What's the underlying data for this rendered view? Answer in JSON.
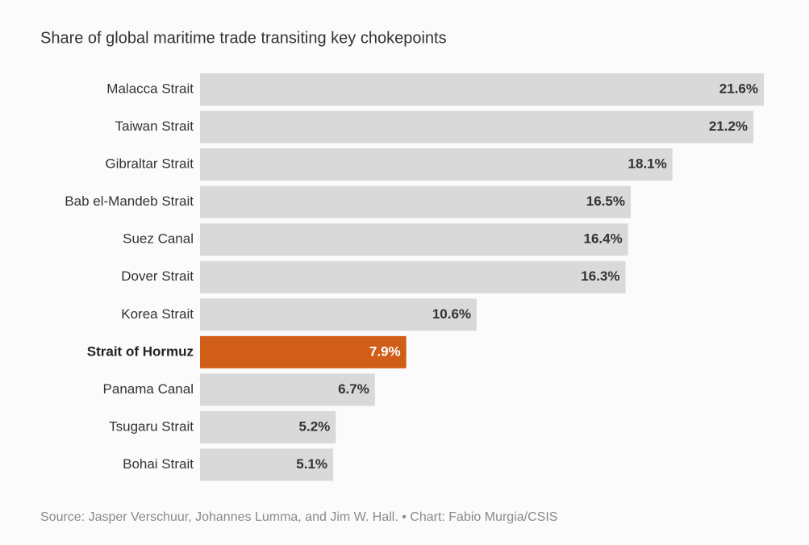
{
  "chart_data": {
    "type": "bar",
    "orientation": "horizontal",
    "title": "Share of global maritime trade transiting key chokepoints",
    "source": "Source: Jasper Verschuur, Johannes Lumma, and Jim W. Hall. • Chart: Fabio Murgia/CSIS",
    "categories": [
      "Malacca Strait",
      "Taiwan Strait",
      "Gibraltar Strait",
      "Bab el-Mandeb Strait",
      "Suez Canal",
      "Dover Strait",
      "Korea Strait",
      "Strait of Hormuz",
      "Panama Canal",
      "Tsugaru Strait",
      "Bohai Strait"
    ],
    "values": [
      21.6,
      21.2,
      18.1,
      16.5,
      16.4,
      16.3,
      10.6,
      7.9,
      6.7,
      5.2,
      5.1
    ],
    "value_labels": [
      "21.6%",
      "21.2%",
      "18.1%",
      "16.5%",
      "16.4%",
      "16.3%",
      "10.6%",
      "7.9%",
      "6.7%",
      "5.2%",
      "5.1%"
    ],
    "color": "#d9d9da",
    "colors": [
      "#d9d9da",
      "#d9d9da",
      "#d9d9da",
      "#d9d9da",
      "#d9d9da",
      "#d9d9da",
      "#d9d9da",
      "#d15e18",
      "#d9d9da",
      "#d9d9da",
      "#d9d9da"
    ]
  }
}
